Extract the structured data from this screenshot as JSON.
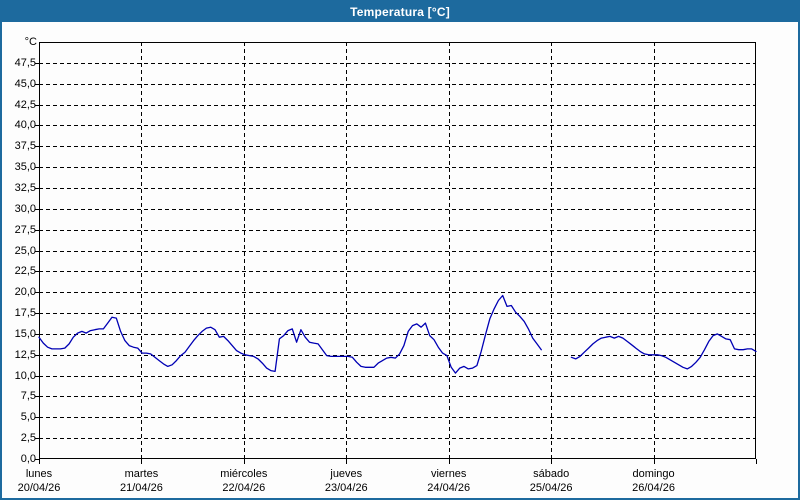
{
  "window": {
    "title": "Temperatura [°C]",
    "titlebar_color": "#1d6a9e",
    "border_color": "#1d6a9e",
    "background_color": "#ffffff"
  },
  "chart_data": {
    "type": "line",
    "title": "Temperatura [°C]",
    "ylabel": "°C",
    "xlabel": "",
    "legend_position": "none",
    "grid": "dashed horizontal every 2.5°C, dashed vertical at day boundaries",
    "line_color": "#0000b4",
    "axis_color": "#000000",
    "ylim": [
      0,
      50
    ],
    "y_tick_step": 2.5,
    "y_tick_labels": [
      "0,0",
      "2,5",
      "5,0",
      "7,5",
      "10,0",
      "12,5",
      "15,0",
      "17,5",
      "20,0",
      "22,5",
      "25,0",
      "27,5",
      "30,0",
      "32,5",
      "35,0",
      "37,5",
      "40,0",
      "42,5",
      "45,0",
      "47,5"
    ],
    "x_days": [
      {
        "name": "lunes",
        "date": "20/04/26"
      },
      {
        "name": "martes",
        "date": "21/04/26"
      },
      {
        "name": "miércoles",
        "date": "22/04/26"
      },
      {
        "name": "jueves",
        "date": "23/04/26"
      },
      {
        "name": "viernes",
        "date": "24/04/26"
      },
      {
        "name": "sábado",
        "date": "25/04/26"
      },
      {
        "name": "domingo",
        "date": "26/04/26"
      }
    ],
    "series": [
      {
        "name": "Temperatura",
        "unit": "°C",
        "sampling": "hourly, null = missing data",
        "values_by_day": [
          [
            14.6,
            13.9,
            13.4,
            13.2,
            13.2,
            13.2,
            13.3,
            13.8,
            14.6,
            15.1,
            15.3,
            15.1,
            15.4,
            15.5,
            15.6,
            15.6,
            16.3,
            17.0,
            16.9,
            15.3,
            14.2,
            13.6,
            13.4,
            13.3
          ],
          [
            12.7,
            12.7,
            12.6,
            12.2,
            11.8,
            11.4,
            11.1,
            11.3,
            11.8,
            12.4,
            12.8,
            13.5,
            14.2,
            14.8,
            15.3,
            15.7,
            15.8,
            15.5,
            14.6,
            14.7,
            14.2,
            13.6,
            13.0,
            12.7
          ],
          [
            12.5,
            12.4,
            12.3,
            12.0,
            11.5,
            10.9,
            10.6,
            10.5,
            14.4,
            14.8,
            15.4,
            15.6,
            14.0,
            15.5,
            14.6,
            14.0,
            13.9,
            13.8,
            13.1,
            12.4,
            12.3,
            12.3,
            12.3,
            12.3
          ],
          [
            12.3,
            12.2,
            11.6,
            11.1,
            11.0,
            11.0,
            11.0,
            11.5,
            11.8,
            12.1,
            12.2,
            12.1,
            12.6,
            13.6,
            15.3,
            16.0,
            16.2,
            15.8,
            16.3,
            14.8,
            14.3,
            13.4,
            12.7,
            12.4
          ],
          [
            11.0,
            10.3,
            10.9,
            11.1,
            10.8,
            10.9,
            11.2,
            12.9,
            14.9,
            16.8,
            18.0,
            19.0,
            19.6,
            18.3,
            18.4,
            17.6,
            17.1,
            16.5,
            15.6,
            14.5,
            13.8,
            13.1,
            null,
            null
          ],
          [
            null,
            null,
            null,
            null,
            12.2,
            12.0,
            12.3,
            12.8,
            13.3,
            13.8,
            14.2,
            14.5,
            14.6,
            14.7,
            14.5,
            14.7,
            14.5,
            14.1,
            13.7,
            13.3,
            12.9,
            12.6,
            12.5,
            12.5
          ],
          [
            12.5,
            12.4,
            12.2,
            11.9,
            11.6,
            11.3,
            11.0,
            10.8,
            11.1,
            11.6,
            12.2,
            13.1,
            14.1,
            14.8,
            15.0,
            14.7,
            14.4,
            14.3,
            13.2,
            13.1,
            13.1,
            13.2,
            13.2,
            12.9
          ]
        ]
      }
    ]
  }
}
